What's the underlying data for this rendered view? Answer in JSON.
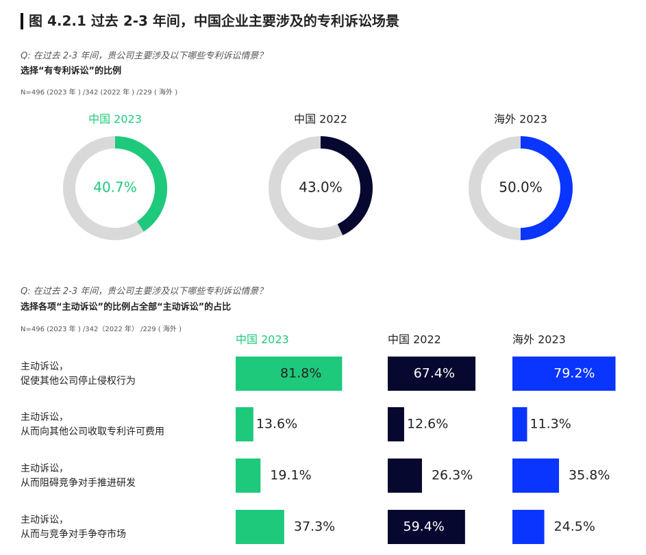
{
  "title": "图 4.2.1 过去 2-3 年间，中国企业主要涉及的专利诉讼场景",
  "section1": {
    "question": "Q: 在过去 2-3 年间，贵公司主要涉及以下哪些专利诉讼情景？",
    "subtitle": "选择“有专利诉讼”的比例",
    "note": "N=496 (2023 年 ) /342 (2022 年 ) /229 ( 海外 )"
  },
  "section2": {
    "question": "Q: 在过去 2-3 年间，贵公司主要涉及以下哪些专利诉讼情景？",
    "subtitle": "选择各项“主动诉讼”的比例占全部“主动诉讼”的占比",
    "note": "N=496 (2023 年 ) /342（2022 年） /229 ( 海外 )",
    "categories": [
      [
        "主动诉讼，",
        "促使其他公司停止侵权行为"
      ],
      [
        "主动诉讼，",
        "从而向其他公司收取专利许可费用"
      ],
      [
        "主动诉讼，",
        "从而阻碍竞争对手推进研发"
      ],
      [
        "主动诉讼，",
        "从而与竞争对手争夺市场"
      ]
    ]
  },
  "chart_data": [
    {
      "type": "donut",
      "title": "中国 2023",
      "values": [
        40.7
      ],
      "value_labels": [
        "40.7%"
      ],
      "color": "#1ec97b"
    },
    {
      "type": "donut",
      "title": "中国 2022",
      "values": [
        43.0
      ],
      "value_labels": [
        "43.0%"
      ],
      "color": "#07082f"
    },
    {
      "type": "donut",
      "title": "海外 2023",
      "values": [
        50.0
      ],
      "value_labels": [
        "50.0%"
      ],
      "color": "#0a35ff"
    },
    {
      "type": "bar",
      "title": "中国 2023",
      "values": [
        81.8,
        13.6,
        19.1,
        37.3
      ],
      "value_labels": [
        "81.8%",
        "13.6%",
        "19.1%",
        "37.3%"
      ],
      "color": "#1ec97b"
    },
    {
      "type": "bar",
      "title": "中国 2022",
      "values": [
        67.4,
        12.6,
        26.3,
        59.4
      ],
      "value_labels": [
        "67.4%",
        "12.6%",
        "26.3%",
        "59.4%"
      ],
      "color": "#07082f"
    },
    {
      "type": "bar",
      "title": "海外 2023",
      "values": [
        79.2,
        11.3,
        35.8,
        24.5
      ],
      "value_labels": [
        "79.2%",
        "11.3%",
        "35.8%",
        "24.5%"
      ],
      "color": "#0a35ff"
    }
  ]
}
